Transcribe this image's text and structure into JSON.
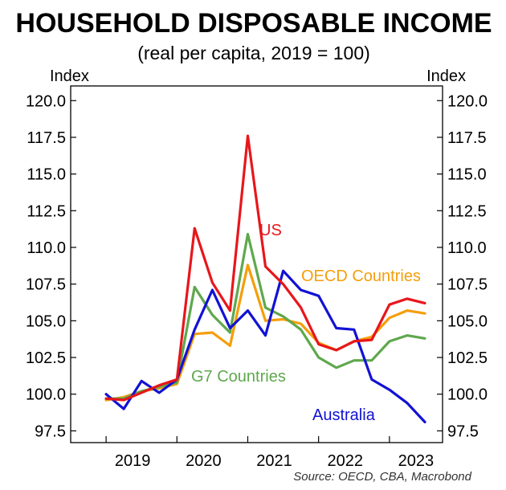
{
  "chart_data": {
    "type": "line",
    "title": "HOUSEHOLD DISPOSABLE INCOME",
    "subtitle": "(real per capita, 2019 = 100)",
    "ylabel_left": "Index",
    "ylabel_right": "Index",
    "source": "Source: OECD, CBA, Macrobond",
    "ylim": [
      96.7,
      121.0
    ],
    "yticks": [
      97.5,
      100.0,
      102.5,
      105.0,
      107.5,
      110.0,
      112.5,
      115.0,
      117.5,
      120.0
    ],
    "ytick_labels": [
      "97.5",
      "100.0",
      "102.5",
      "105.0",
      "107.5",
      "110.0",
      "112.5",
      "115.0",
      "117.5",
      "120.0"
    ],
    "xlim": [
      "2018-Q3",
      "2023-Q4"
    ],
    "x_tick_labels": [
      "2019",
      "2020",
      "2021",
      "2022",
      "2023"
    ],
    "x": [
      "2019-Q1",
      "2019-Q2",
      "2019-Q3",
      "2019-Q4",
      "2020-Q1",
      "2020-Q2",
      "2020-Q3",
      "2020-Q4",
      "2021-Q1",
      "2021-Q2",
      "2021-Q3",
      "2021-Q4",
      "2022-Q1",
      "2022-Q2",
      "2022-Q3",
      "2022-Q4",
      "2023-Q1",
      "2023-Q2",
      "2023-Q3"
    ],
    "grid": false,
    "series": [
      {
        "name": "US",
        "color": "#e8161b",
        "values": [
          99.7,
          99.6,
          100.1,
          100.6,
          101.0,
          111.3,
          107.6,
          105.7,
          117.6,
          108.7,
          107.5,
          105.9,
          103.4,
          103.0,
          103.6,
          103.7,
          106.1,
          106.5,
          106.2
        ]
      },
      {
        "name": "OECD Countries",
        "color": "#f59e0b",
        "values": [
          99.6,
          99.8,
          100.2,
          100.4,
          100.7,
          104.1,
          104.2,
          103.3,
          108.8,
          105.0,
          105.1,
          104.8,
          103.5,
          103.0,
          103.6,
          103.9,
          105.2,
          105.7,
          105.5
        ]
      },
      {
        "name": "G7 Countries",
        "color": "#5fa84d",
        "values": [
          99.7,
          99.7,
          100.2,
          100.5,
          100.8,
          107.3,
          105.4,
          104.2,
          110.9,
          105.9,
          105.3,
          104.4,
          102.5,
          101.8,
          102.3,
          102.3,
          103.6,
          104.0,
          103.8
        ]
      },
      {
        "name": "Australia",
        "color": "#1212d4",
        "values": [
          100.0,
          99.0,
          100.9,
          100.1,
          101.0,
          104.4,
          107.1,
          104.5,
          105.7,
          104.0,
          108.4,
          107.1,
          106.7,
          104.5,
          104.4,
          101.0,
          100.3,
          99.4,
          98.1
        ]
      }
    ]
  }
}
